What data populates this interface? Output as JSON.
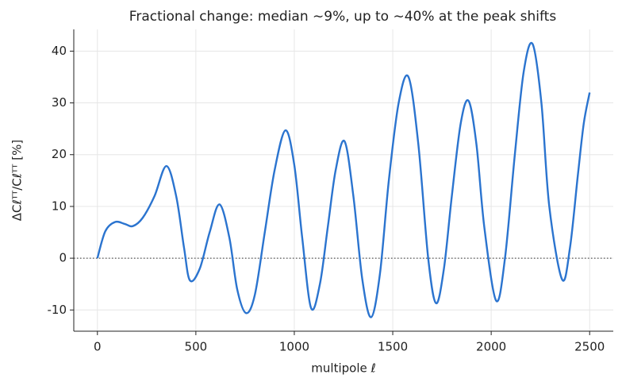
{
  "chart_data": {
    "type": "line",
    "title": "Fractional change: median ∼9%, up to ∼40% at the peak shifts",
    "x_label": "multipole ℓ",
    "y_label": "ΔCℓᵀᵀ/Cℓᵀᵀ  [%]",
    "x": [
      0,
      40,
      90,
      140,
      180,
      230,
      290,
      350,
      400,
      440,
      470,
      520,
      570,
      620,
      670,
      710,
      755,
      800,
      850,
      900,
      955,
      1000,
      1040,
      1085,
      1130,
      1170,
      1210,
      1255,
      1300,
      1345,
      1390,
      1435,
      1480,
      1530,
      1580,
      1630,
      1680,
      1720,
      1760,
      1800,
      1845,
      1885,
      1925,
      1965,
      2025,
      2070,
      2120,
      2165,
      2210,
      2255,
      2295,
      2360,
      2400,
      2440,
      2470,
      2500
    ],
    "series": [
      {
        "name": "Fractional change",
        "color": "#2b74cf",
        "values": [
          0,
          5.2,
          7,
          6.6,
          6.2,
          7.8,
          12,
          17.8,
          12,
          2,
          -4.3,
          -2,
          5,
          10.4,
          4,
          -6,
          -10.6,
          -7,
          5,
          17,
          24.7,
          18,
          4,
          -9.6,
          -5,
          6,
          17,
          22.6,
          12,
          -4,
          -11.4,
          -3,
          15,
          30,
          35,
          22,
          0,
          -8.7,
          -2,
          12,
          26,
          30.4,
          22,
          6,
          -8.2,
          0,
          20,
          36,
          41.4,
          30,
          10,
          -4.1,
          2,
          16,
          26,
          32
        ]
      }
    ],
    "xlim": [
      -120,
      2620
    ],
    "ylim": [
      -14.1,
      44.2
    ],
    "xticks": [
      0,
      500,
      1000,
      1500,
      2000,
      2500
    ],
    "yticks": [
      -10,
      0,
      10,
      20,
      30,
      40
    ],
    "reference_line": 0,
    "grid": true
  }
}
